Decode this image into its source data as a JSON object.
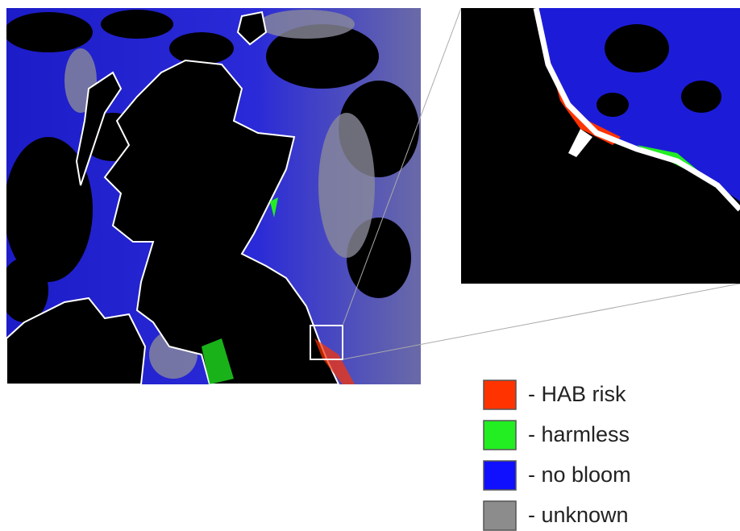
{
  "legend": {
    "items": [
      {
        "label": "- HAB risk",
        "color": "#ff3300"
      },
      {
        "label": "- harmless",
        "color": "#22ee22"
      },
      {
        "label": "- no bloom",
        "color": "#1010ff"
      },
      {
        "label": "- unknown",
        "color": "#8c8c8c"
      }
    ]
  }
}
